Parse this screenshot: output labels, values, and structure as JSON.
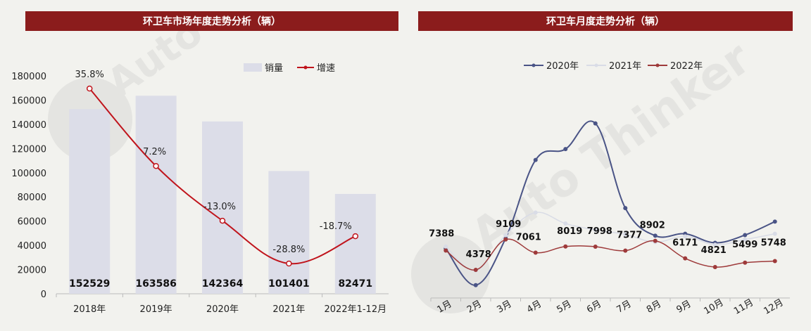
{
  "colors": {
    "title_bg": "#8b1c1c",
    "bar": "#dcdde8",
    "growth_line": "#c0141c",
    "s2020": "#4a5486",
    "s2021": "#d9dce6",
    "s2022": "#9e3a3a"
  },
  "watermark": {
    "icon": "auto-thinker-logo-icon",
    "text": "Auto Thinker",
    "subtext": "汽 车 智 库 平 台"
  },
  "chart_data": [
    {
      "type": "bar",
      "title": "环卫车市场年度走势分析（辆）",
      "categories": [
        "2018年",
        "2019年",
        "2020年",
        "2021年",
        "2022年1-12月"
      ],
      "ylim": [
        0,
        180000
      ],
      "yticks": [
        "0",
        "20000",
        "40000",
        "60000",
        "80000",
        "100000",
        "120000",
        "140000",
        "160000",
        "180000"
      ],
      "grid": false,
      "legend_position": "top",
      "series": [
        {
          "name": "销量",
          "type": "bar",
          "values": [
            152529,
            163586,
            142364,
            101401,
            82471
          ],
          "labels": [
            "152529",
            "163586",
            "142364",
            "101401",
            "82471"
          ]
        },
        {
          "name": "增速",
          "type": "line",
          "values": [
            35.8,
            7.2,
            -13.0,
            -28.8,
            -18.7
          ],
          "labels": [
            "35.8%",
            "7.2%",
            "-13.0%",
            "-28.8%",
            "-18.7%"
          ]
        }
      ]
    },
    {
      "type": "line",
      "title": "环卫车月度走势分析（辆）",
      "categories": [
        "1月",
        "2月",
        "3月",
        "4月",
        "5月",
        "6月",
        "7月",
        "8月",
        "9月",
        "10月",
        "11月",
        "12月"
      ],
      "grid": false,
      "legend_position": "top",
      "series": [
        {
          "name": "2020年",
          "values": [
            7700,
            2000,
            9300,
            21500,
            23200,
            27200,
            14000,
            9700,
            10000,
            8600,
            9800,
            11900
          ]
        },
        {
          "name": "2021年",
          "values": [
            8000,
            4300,
            9800,
            13300,
            11600,
            10600,
            9900,
            8700,
            9600,
            8300,
            9100,
            10000
          ]
        },
        {
          "name": "2022年",
          "values": [
            7388,
            4378,
            9109,
            7061,
            8019,
            7998,
            7377,
            8902,
            6171,
            4821,
            5499,
            5748
          ],
          "labels": [
            "7388",
            "4378",
            "9109",
            "7061",
            "8019",
            "7998",
            "7377",
            "8902",
            "6171",
            "4821",
            "5499",
            "5748"
          ]
        }
      ]
    }
  ]
}
